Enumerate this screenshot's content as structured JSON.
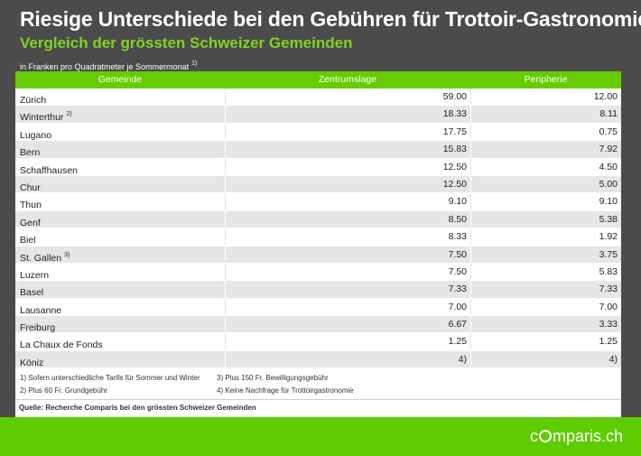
{
  "title": "Riesige Unterschiede bei den Gebühren für Trottoir-Gastronomie",
  "subtitle": "Vergleich der grössten Schweizer Gemeinden",
  "unit_note": "in Franken pro Quadratmeter je Sommermonat",
  "unit_note_ref": "1)",
  "table": {
    "headers": [
      "Gemeinde",
      "Zentrumslage",
      "Peripherie"
    ],
    "rows": [
      {
        "city": "Zürich",
        "ref": "",
        "center": "59.00",
        "periphery": "12.00"
      },
      {
        "city": "Winterthur",
        "ref": "2)",
        "center": "18.33",
        "periphery": "8.11"
      },
      {
        "city": "Lugano",
        "ref": "",
        "center": "17.75",
        "periphery": "0.75"
      },
      {
        "city": "Bern",
        "ref": "",
        "center": "15.83",
        "periphery": "7.92"
      },
      {
        "city": "Schaffhausen",
        "ref": "",
        "center": "12.50",
        "periphery": "4.50"
      },
      {
        "city": "Chur",
        "ref": "",
        "center": "12.50",
        "periphery": "5.00"
      },
      {
        "city": "Thun",
        "ref": "",
        "center": "9.10",
        "periphery": "9.10"
      },
      {
        "city": "Genf",
        "ref": "",
        "center": "8.50",
        "periphery": "5.38"
      },
      {
        "city": "Biel",
        "ref": "",
        "center": "8.33",
        "periphery": "1.92"
      },
      {
        "city": "St. Gallen",
        "ref": "3)",
        "center": "7.50",
        "periphery": "3.75"
      },
      {
        "city": "Luzern",
        "ref": "",
        "center": "7.50",
        "periphery": "5.83"
      },
      {
        "city": "Basel",
        "ref": "",
        "center": "7.33",
        "periphery": "7.33"
      },
      {
        "city": "Lausanne",
        "ref": "",
        "center": "7.00",
        "periphery": "7.00"
      },
      {
        "city": "Freiburg",
        "ref": "",
        "center": "6.67",
        "periphery": "3.33"
      },
      {
        "city": "La Chaux de Fonds",
        "ref": "",
        "center": "1.25",
        "periphery": "1.25"
      },
      {
        "city": "Köniz",
        "ref": "",
        "center": "4)",
        "periphery": "4)"
      }
    ]
  },
  "notes": [
    "1) Sofern unterschiedliche Tarife für Sommer und Winter",
    "2) Plus 60 Fr. Grundgebühr",
    "3) Plus 150 Fr. Bewilligungsgebühr",
    "4) Keine Nachfrage für Trottoirgastronomie"
  ],
  "source": "Quelle: Recherche Comparis bei den grössten Schweizer Gemeinden",
  "logo": {
    "prefix": "c",
    "suffix": "mparis.ch"
  },
  "colors": {
    "background": "#4b4b4b",
    "accent": "#66cc00",
    "row_alt": "#e6e6e6"
  }
}
